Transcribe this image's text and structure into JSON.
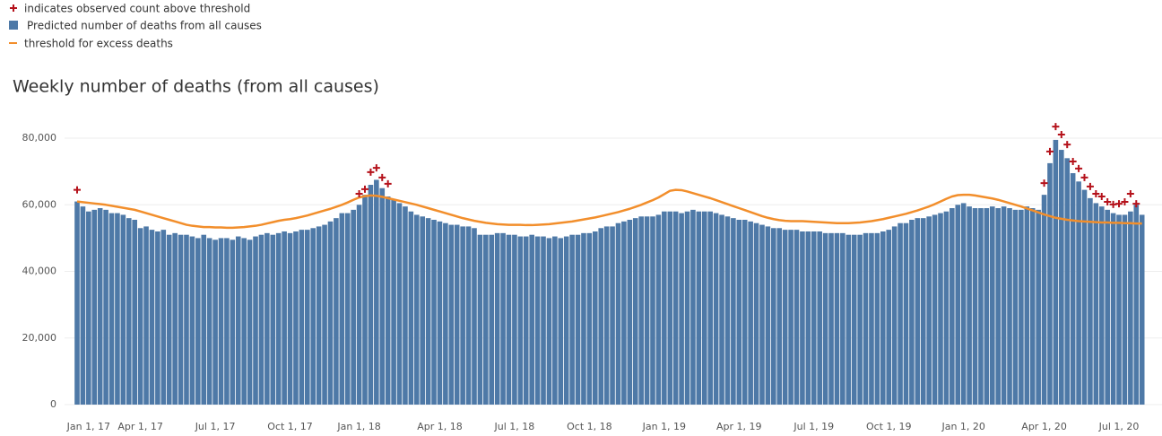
{
  "chart_data": {
    "type": "bar",
    "title": "Weekly number of deaths (from all causes)",
    "categories": [
      null,
      null,
      "Jan 1, 17",
      null,
      null,
      null,
      null,
      null,
      null,
      null,
      null,
      "Apr 1, 17",
      null,
      null,
      null,
      null,
      null,
      null,
      null,
      null,
      null,
      null,
      null,
      null,
      "Jul 1, 17",
      null,
      null,
      null,
      null,
      null,
      null,
      null,
      null,
      null,
      null,
      null,
      null,
      "Oct 1, 17",
      null,
      null,
      null,
      null,
      null,
      null,
      null,
      null,
      null,
      null,
      null,
      "Jan 1, 18",
      null,
      null,
      null,
      null,
      null,
      null,
      null,
      null,
      null,
      null,
      null,
      null,
      null,
      "Apr 1, 18",
      null,
      null,
      null,
      null,
      null,
      null,
      null,
      null,
      null,
      null,
      null,
      null,
      "Jul 1, 18",
      null,
      null,
      null,
      null,
      null,
      null,
      null,
      null,
      null,
      null,
      null,
      null,
      "Oct 1, 18",
      null,
      null,
      null,
      null,
      null,
      null,
      null,
      null,
      null,
      null,
      null,
      null,
      "Jan 1, 19",
      null,
      null,
      null,
      null,
      null,
      null,
      null,
      null,
      null,
      null,
      null,
      null,
      "Apr 1, 19",
      null,
      null,
      null,
      null,
      null,
      null,
      null,
      null,
      null,
      null,
      null,
      null,
      "Jul 1, 19",
      null,
      null,
      null,
      null,
      null,
      null,
      null,
      null,
      null,
      null,
      null,
      null,
      "Oct 1, 19",
      null,
      null,
      null,
      null,
      null,
      null,
      null,
      null,
      null,
      null,
      null,
      null,
      "Jan 1, 20",
      null,
      null,
      null,
      null,
      null,
      null,
      null,
      null,
      null,
      null,
      null,
      null,
      null,
      "Apr 1, 20",
      null,
      null,
      null,
      null,
      null,
      null,
      null,
      null,
      null,
      null,
      null,
      null,
      "Jul 1, 20",
      null,
      null,
      null,
      null
    ],
    "series": [
      {
        "name": "Predicted number of deaths from all causes",
        "color": "#4e79a7",
        "values": [
          61000,
          59500,
          58000,
          58500,
          59000,
          58500,
          57500,
          57500,
          57000,
          56000,
          55500,
          53000,
          53500,
          52500,
          52000,
          52500,
          51000,
          51500,
          51000,
          51000,
          50500,
          50000,
          51000,
          50000,
          49500,
          50000,
          50000,
          49500,
          50500,
          50000,
          49500,
          50500,
          51000,
          51500,
          51000,
          51500,
          52000,
          51500,
          52000,
          52500,
          52500,
          53000,
          53500,
          54000,
          55000,
          56000,
          57500,
          57500,
          58500,
          60000,
          63000,
          66000,
          67500,
          65000,
          62500,
          61500,
          60500,
          59500,
          58000,
          57000,
          56500,
          56000,
          55500,
          55000,
          54500,
          54000,
          54000,
          53500,
          53500,
          53000,
          51000,
          51000,
          51000,
          51500,
          51500,
          51000,
          51000,
          50500,
          50500,
          51000,
          50500,
          50500,
          50000,
          50500,
          50000,
          50500,
          51000,
          51000,
          51500,
          51500,
          52000,
          53000,
          53500,
          53500,
          54500,
          55000,
          55500,
          56000,
          56500,
          56500,
          56500,
          57000,
          58000,
          58000,
          58000,
          57500,
          58000,
          58500,
          58000,
          58000,
          58000,
          57500,
          57000,
          56500,
          56000,
          55500,
          55500,
          55000,
          54500,
          54000,
          53500,
          53000,
          53000,
          52500,
          52500,
          52500,
          52000,
          52000,
          52000,
          52000,
          51500,
          51500,
          51500,
          51500,
          51000,
          51000,
          51000,
          51500,
          51500,
          51500,
          52000,
          52500,
          53500,
          54500,
          54500,
          55500,
          56000,
          56000,
          56500,
          57000,
          57500,
          58000,
          59000,
          60000,
          60500,
          59500,
          59000,
          59000,
          59000,
          59500,
          59000,
          59500,
          59000,
          58500,
          58500,
          59500,
          59000,
          58500,
          63000,
          72500,
          79500,
          76500,
          74000,
          69500,
          67000,
          64500,
          62000,
          60500,
          59500,
          58500,
          57500,
          57000,
          57000,
          58000,
          60000,
          57000
        ]
      },
      {
        "name": "threshold for excess deaths",
        "color": "#f28e2b",
        "values": [
          61000,
          60800,
          60600,
          60400,
          60200,
          60000,
          59700,
          59400,
          59100,
          58800,
          58500,
          58000,
          57500,
          57000,
          56500,
          56000,
          55500,
          55000,
          54500,
          54000,
          53700,
          53500,
          53300,
          53300,
          53200,
          53200,
          53100,
          53100,
          53200,
          53300,
          53500,
          53700,
          54000,
          54400,
          54800,
          55200,
          55500,
          55700,
          56000,
          56400,
          56800,
          57300,
          57800,
          58300,
          58800,
          59400,
          60000,
          60700,
          61500,
          62200,
          62600,
          62800,
          62700,
          62400,
          62000,
          61600,
          61200,
          60800,
          60400,
          60000,
          59500,
          59000,
          58500,
          58000,
          57500,
          57000,
          56500,
          56000,
          55600,
          55200,
          54900,
          54600,
          54400,
          54200,
          54100,
          54000,
          54000,
          54000,
          53900,
          53900,
          54000,
          54100,
          54200,
          54400,
          54600,
          54800,
          55000,
          55300,
          55600,
          55900,
          56200,
          56600,
          57000,
          57400,
          57800,
          58300,
          58800,
          59400,
          60000,
          60700,
          61400,
          62200,
          63200,
          64200,
          64500,
          64400,
          64000,
          63500,
          63000,
          62500,
          62000,
          61400,
          60800,
          60200,
          59600,
          59000,
          58400,
          57800,
          57200,
          56600,
          56100,
          55700,
          55400,
          55200,
          55100,
          55100,
          55100,
          55000,
          54900,
          54800,
          54700,
          54600,
          54500,
          54500,
          54500,
          54600,
          54700,
          54900,
          55100,
          55400,
          55700,
          56100,
          56500,
          56900,
          57300,
          57800,
          58300,
          58900,
          59500,
          60200,
          61000,
          61800,
          62500,
          62900,
          63000,
          63000,
          62800,
          62500,
          62200,
          61900,
          61500,
          61000,
          60500,
          60000,
          59500,
          58900,
          58300,
          57700,
          57100,
          56600,
          56100,
          55800,
          55500,
          55300,
          55100,
          55000,
          54900,
          54800,
          54700,
          54700,
          54600,
          54600,
          54500,
          54500,
          54400,
          54400
        ]
      },
      {
        "name": "indicates observed count above threshold",
        "color": "#b5121b",
        "values": [
          64500,
          null,
          null,
          null,
          null,
          null,
          null,
          null,
          null,
          null,
          null,
          null,
          null,
          null,
          null,
          null,
          null,
          null,
          null,
          null,
          null,
          null,
          null,
          null,
          null,
          null,
          null,
          null,
          null,
          null,
          null,
          null,
          null,
          null,
          null,
          null,
          null,
          null,
          null,
          null,
          null,
          null,
          null,
          null,
          null,
          null,
          null,
          null,
          null,
          63300,
          64700,
          69800,
          71100,
          68200,
          66300,
          null,
          null,
          null,
          null,
          null,
          null,
          null,
          null,
          null,
          null,
          null,
          null,
          null,
          null,
          null,
          null,
          null,
          null,
          null,
          null,
          null,
          null,
          null,
          null,
          null,
          null,
          null,
          null,
          null,
          null,
          null,
          null,
          null,
          null,
          null,
          null,
          null,
          null,
          null,
          null,
          null,
          null,
          null,
          null,
          null,
          null,
          null,
          null,
          null,
          null,
          null,
          null,
          null,
          null,
          null,
          null,
          null,
          null,
          null,
          null,
          null,
          null,
          null,
          null,
          null,
          null,
          null,
          null,
          null,
          null,
          null,
          null,
          null,
          null,
          null,
          null,
          null,
          null,
          null,
          null,
          null,
          null,
          null,
          null,
          null,
          null,
          null,
          null,
          null,
          null,
          null,
          null,
          null,
          null,
          null,
          null,
          null,
          null,
          null,
          null,
          null,
          null,
          null,
          null,
          null,
          null,
          null,
          null,
          null,
          null,
          null,
          null,
          null,
          66500,
          76000,
          83500,
          81100,
          78100,
          73000,
          70900,
          68200,
          65500,
          63300,
          62500,
          60900,
          60100,
          60300,
          60900,
          63300,
          60300,
          null
        ]
      }
    ],
    "ylim": [
      0,
      85000
    ],
    "yticks": [
      0,
      {
        "value": 20000,
        "label": "20,000"
      },
      {
        "value": 40000,
        "label": "40,000"
      },
      {
        "value": 60000,
        "label": "60,000"
      },
      {
        "value": 80000,
        "label": "80,000"
      }
    ],
    "grid": true
  }
}
